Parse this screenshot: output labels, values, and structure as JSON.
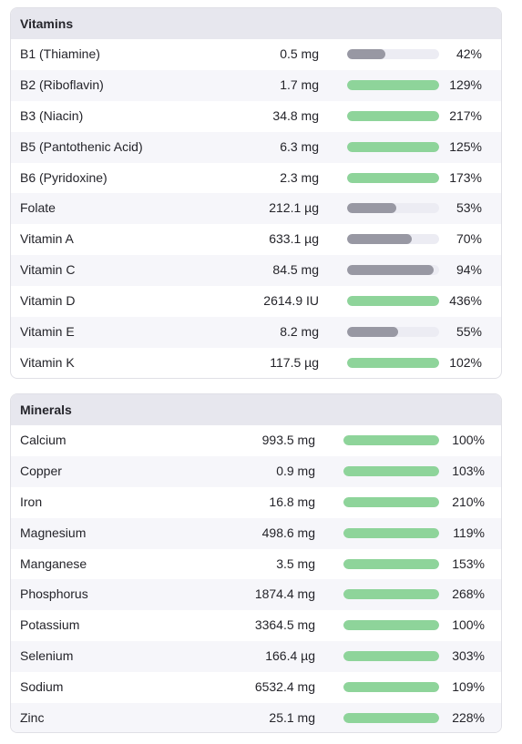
{
  "vitamins": {
    "title": "Vitamins",
    "items": [
      {
        "name": "B1 (Thiamine)",
        "amount": "0.5 mg",
        "percent": "42%",
        "pct": 42,
        "status": "low"
      },
      {
        "name": "B2 (Riboflavin)",
        "amount": "1.7 mg",
        "percent": "129%",
        "pct": 129,
        "status": "ok"
      },
      {
        "name": "B3 (Niacin)",
        "amount": "34.8 mg",
        "percent": "217%",
        "pct": 217,
        "status": "ok"
      },
      {
        "name": "B5 (Pantothenic Acid)",
        "amount": "6.3 mg",
        "percent": "125%",
        "pct": 125,
        "status": "ok"
      },
      {
        "name": "B6 (Pyridoxine)",
        "amount": "2.3 mg",
        "percent": "173%",
        "pct": 173,
        "status": "ok"
      },
      {
        "name": "Folate",
        "amount": "212.1 µg",
        "percent": "53%",
        "pct": 53,
        "status": "low"
      },
      {
        "name": "Vitamin A",
        "amount": "633.1 µg",
        "percent": "70%",
        "pct": 70,
        "status": "low"
      },
      {
        "name": "Vitamin C",
        "amount": "84.5 mg",
        "percent": "94%",
        "pct": 94,
        "status": "low"
      },
      {
        "name": "Vitamin D",
        "amount": "2614.9 IU",
        "percent": "436%",
        "pct": 436,
        "status": "ok"
      },
      {
        "name": "Vitamin E",
        "amount": "8.2 mg",
        "percent": "55%",
        "pct": 55,
        "status": "low"
      },
      {
        "name": "Vitamin K",
        "amount": "117.5 µg",
        "percent": "102%",
        "pct": 102,
        "status": "ok"
      }
    ]
  },
  "minerals": {
    "title": "Minerals",
    "items": [
      {
        "name": "Calcium",
        "amount": "993.5 mg",
        "percent": "100%",
        "pct": 100,
        "status": "ok"
      },
      {
        "name": "Copper",
        "amount": "0.9 mg",
        "percent": "103%",
        "pct": 103,
        "status": "ok"
      },
      {
        "name": "Iron",
        "amount": "16.8 mg",
        "percent": "210%",
        "pct": 210,
        "status": "ok"
      },
      {
        "name": "Magnesium",
        "amount": "498.6 mg",
        "percent": "119%",
        "pct": 119,
        "status": "ok"
      },
      {
        "name": "Manganese",
        "amount": "3.5 mg",
        "percent": "153%",
        "pct": 153,
        "status": "ok"
      },
      {
        "name": "Phosphorus",
        "amount": "1874.4 mg",
        "percent": "268%",
        "pct": 268,
        "status": "ok"
      },
      {
        "name": "Potassium",
        "amount": "3364.5 mg",
        "percent": "100%",
        "pct": 100,
        "status": "ok"
      },
      {
        "name": "Selenium",
        "amount": "166.4 µg",
        "percent": "303%",
        "pct": 303,
        "status": "ok"
      },
      {
        "name": "Sodium",
        "amount": "6532.4 mg",
        "percent": "109%",
        "pct": 109,
        "status": "ok"
      },
      {
        "name": "Zinc",
        "amount": "25.1 mg",
        "percent": "228%",
        "pct": 228,
        "status": "ok"
      }
    ]
  },
  "colors": {
    "ok": "#8ed49a",
    "low": "#9898a3",
    "track": "#ececf3",
    "header_bg": "#e7e7ee"
  }
}
